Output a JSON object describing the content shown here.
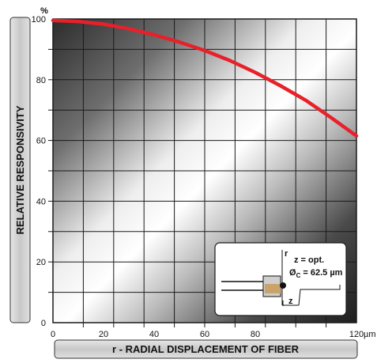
{
  "chart_data": {
    "type": "line",
    "title": "",
    "xlabel": "r - RADIAL DISPLACEMENT OF FIBER",
    "ylabel": "RELATIVE RESPONSIVITY",
    "x_unit": "µm",
    "y_unit": "%",
    "xlim": [
      0,
      120
    ],
    "ylim": [
      0,
      100
    ],
    "x_ticks": [
      "0",
      "20",
      "40",
      "60",
      "80",
      "120"
    ],
    "x_tick_values": [
      0,
      20,
      40,
      60,
      80,
      120
    ],
    "y_ticks": [
      "0",
      "20",
      "40",
      "60",
      "80",
      "100"
    ],
    "y_tick_values": [
      0,
      20,
      40,
      60,
      80,
      100
    ],
    "grid": true,
    "series": [
      {
        "name": "",
        "color": "#e8202a",
        "x": [
          0,
          10,
          20,
          30,
          40,
          50,
          60,
          70,
          80,
          90,
          100,
          110,
          120
        ],
        "y": [
          99.5,
          99.2,
          98.3,
          96.8,
          94.8,
          92.4,
          89.6,
          86.3,
          82.4,
          78.0,
          73.2,
          67.5,
          61.5
        ]
      }
    ],
    "inset": {
      "r_label": "r",
      "z_label": "z",
      "z_text": "z = opt.",
      "diam_symbol": "Ø",
      "diam_sub": "C",
      "diam_value": " = 62.5 µm"
    }
  },
  "colors": {
    "curve": "#e8202a",
    "frame": "#1a1a1a",
    "label_box": "#d4d4d4"
  }
}
